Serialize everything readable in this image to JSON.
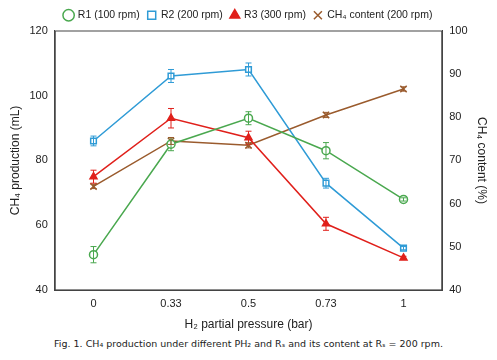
{
  "chart_data": {
    "type": "line",
    "caption": "Fig. 1. CH₄ production under different PH₂ and Rₛ and its content at Rₛ = 200 rpm.",
    "x_label": "H₂ partial pressure (bar)",
    "y_label": "CH₄ production (mL)",
    "y2_label": "CH₄ content (%)",
    "categories": [
      "0",
      "0.33",
      "0.5",
      "0.73",
      "1"
    ],
    "series": [
      {
        "name": "R1 (100 rpm)",
        "color": "#4aa84f",
        "marker": "circle",
        "values": [
          51,
          85,
          93,
          83,
          68
        ],
        "errors": [
          2.5,
          2,
          2,
          2.5,
          0.5
        ]
      },
      {
        "name": "R2 (200 rpm)",
        "color": "#2f9bd6",
        "marker": "square",
        "values": [
          86,
          106,
          108,
          73,
          53
        ],
        "errors": [
          1.5,
          2,
          2,
          1.5,
          0.5
        ]
      },
      {
        "name": "R3 (300 rpm)",
        "color": "#e0201b",
        "marker": "triangle",
        "values": [
          75,
          93,
          87,
          60.5,
          50
        ],
        "errors": [
          2,
          3,
          2,
          2,
          0.5
        ]
      },
      {
        "name": "CH₄ content (200 rpm)",
        "color": "#9a5b2d",
        "marker": "x",
        "axis": "y2",
        "values": [
          64,
          74.5,
          73.5,
          80.5,
          86.5
        ],
        "errors": [
          0.5,
          0.8,
          0.6,
          0.6,
          0.5
        ]
      }
    ],
    "ylim": [
      40,
      120
    ],
    "yticks": [
      40,
      60,
      80,
      100,
      120
    ],
    "y2lim": [
      40,
      100
    ],
    "y2ticks": [
      40,
      50,
      60,
      70,
      80,
      90,
      100
    ],
    "grid": false,
    "legend": "top"
  }
}
